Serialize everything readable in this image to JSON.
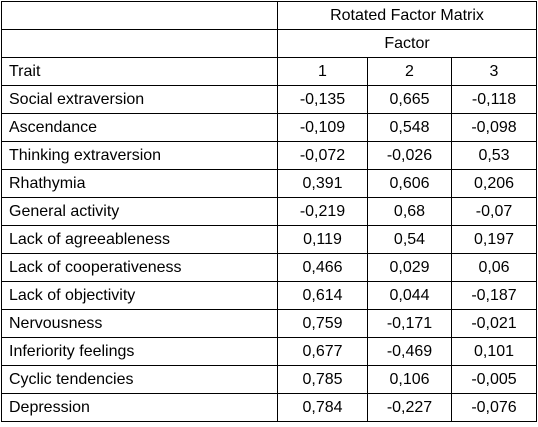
{
  "table": {
    "title": "Rotated Factor Matrix",
    "factor_label": "Factor",
    "columns": [
      "Trait",
      "1",
      "2",
      "3"
    ],
    "rows": [
      {
        "trait": "Social extraversion",
        "f1": "-0,135",
        "f2": "0,665",
        "f3": "-0,118"
      },
      {
        "trait": "Ascendance",
        "f1": "-0,109",
        "f2": "0,548",
        "f3": "-0,098"
      },
      {
        "trait": "Thinking extraversion",
        "f1": "-0,072",
        "f2": "-0,026",
        "f3": "0,53"
      },
      {
        "trait": "Rhathymia",
        "f1": "0,391",
        "f2": "0,606",
        "f3": "0,206"
      },
      {
        "trait": "General activity",
        "f1": "-0,219",
        "f2": "0,68",
        "f3": "-0,07"
      },
      {
        "trait": "Lack of agreeableness",
        "f1": "0,119",
        "f2": "0,54",
        "f3": "0,197"
      },
      {
        "trait": "Lack of cooperativeness",
        "f1": "0,466",
        "f2": "0,029",
        "f3": "0,06"
      },
      {
        "trait": "Lack of objectivity",
        "f1": "0,614",
        "f2": "0,044",
        "f3": "-0,187"
      },
      {
        "trait": "Nervousness",
        "f1": "0,759",
        "f2": "-0,171",
        "f3": "-0,021"
      },
      {
        "trait": "Inferiority feelings",
        "f1": "0,677",
        "f2": "-0,469",
        "f3": "0,101"
      },
      {
        "trait": "Cyclic tendencies",
        "f1": "0,785",
        "f2": "0,106",
        "f3": "-0,005"
      },
      {
        "trait": "Depression",
        "f1": "0,784",
        "f2": "-0,227",
        "f3": "-0,076"
      }
    ]
  }
}
